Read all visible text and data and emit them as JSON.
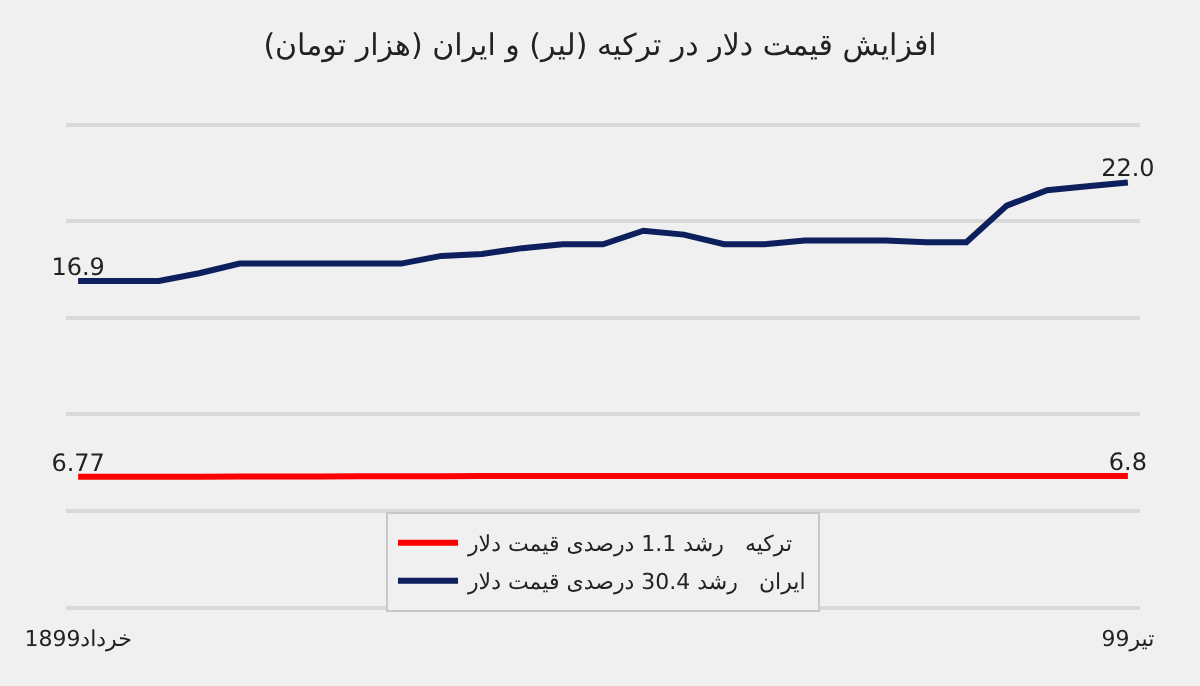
{
  "chart_data": {
    "type": "line",
    "title": "افزایش قیمت دلار در ترکیه (لیر) و ایران (هزار تومان)",
    "categories": [
      "18خرداد99",
      null,
      null,
      null,
      null,
      null,
      null,
      null,
      null,
      null,
      null,
      null,
      null,
      null,
      null,
      null,
      null,
      null,
      null,
      null,
      null,
      null,
      null,
      null,
      null,
      null,
      "تیر99"
    ],
    "series": [
      {
        "name": "ترکیه   رشد 1.1 درصدی قیمت دلار",
        "color": "#ff0000",
        "values": [
          6.77,
          6.77,
          6.77,
          6.77,
          6.78,
          6.78,
          6.78,
          6.79,
          6.79,
          6.79,
          6.8,
          6.8,
          6.8,
          6.8,
          6.8,
          6.8,
          6.8,
          6.8,
          6.8,
          6.8,
          6.8,
          6.8,
          6.8,
          6.8,
          6.8,
          6.8,
          6.8
        ],
        "value_labels": [
          "6.77",
          null,
          null,
          null,
          null,
          null,
          null,
          null,
          null,
          null,
          null,
          null,
          null,
          null,
          null,
          null,
          null,
          null,
          null,
          null,
          null,
          null,
          null,
          null,
          null,
          null,
          "6.8"
        ]
      },
      {
        "name": "ایران   رشد 30.4 درصدی قیمت دلار",
        "color": "#0d1f5c",
        "values": [
          16.9,
          16.9,
          16.9,
          17.3,
          17.8,
          17.8,
          17.8,
          17.8,
          17.8,
          18.2,
          18.3,
          18.6,
          18.8,
          18.8,
          19.5,
          19.3,
          18.8,
          18.8,
          19.0,
          19.0,
          19.0,
          18.9,
          18.9,
          20.8,
          21.6,
          21.8,
          22.0
        ],
        "value_labels": [
          "16.9",
          null,
          null,
          null,
          null,
          null,
          null,
          null,
          null,
          null,
          null,
          null,
          null,
          null,
          null,
          null,
          null,
          null,
          null,
          null,
          null,
          null,
          null,
          null,
          null,
          null,
          "22.0"
        ]
      }
    ],
    "yticks": [
      {
        "value": 0,
        "label": null
      },
      {
        "value": 5,
        "label": null
      },
      {
        "value": 10,
        "label": null
      },
      {
        "value": 15,
        "label": null
      },
      {
        "value": 20,
        "label": null
      },
      {
        "value": 25,
        "label": null
      }
    ],
    "tick_labels": "x",
    "grid": "y",
    "legend": "bottom",
    "marker": "none",
    "line_style": "solid"
  }
}
